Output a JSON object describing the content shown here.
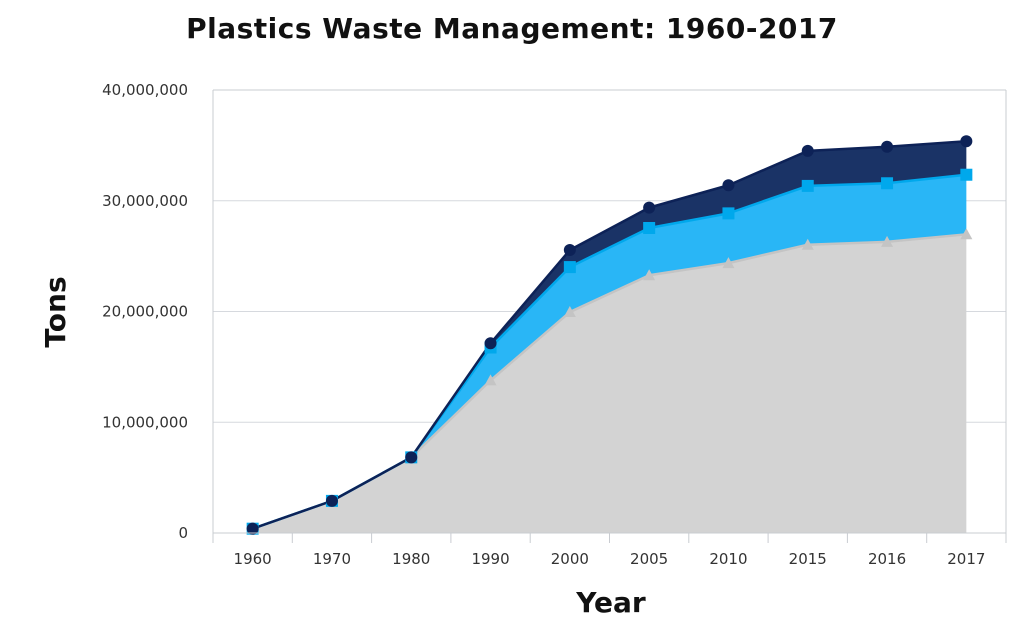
{
  "chart_data": {
    "type": "area",
    "title": "Plastics Waste Management: 1960-2017",
    "xlabel": "Year",
    "ylabel": "Tons",
    "categories": [
      "1960",
      "1970",
      "1980",
      "1990",
      "2000",
      "2005",
      "2010",
      "2015",
      "2016",
      "2017"
    ],
    "ylim": [
      0,
      40000000
    ],
    "yticks": [
      0,
      10000000,
      20000000,
      30000000,
      40000000
    ],
    "ytick_labels": [
      "0",
      "10,000,000",
      "20,000,000",
      "30,000,000",
      "40,000,000"
    ],
    "stacked": true,
    "grid": "horizontal",
    "series": [
      {
        "marker": "triangle",
        "color": "#d3d3d3",
        "line_color": "#c4c4c4",
        "values": [
          390000,
          2900000,
          6830000,
          13780000,
          19950000,
          23270000,
          24370000,
          26030000,
          26290000,
          26970000
        ]
      },
      {
        "marker": "square",
        "color": "#29b6f6",
        "line_color": "#00a8ec",
        "values": [
          390000,
          2900000,
          6830000,
          16750000,
          24010000,
          27540000,
          28860000,
          31340000,
          31580000,
          32350000
        ]
      },
      {
        "marker": "circle",
        "color": "#1a3366",
        "line_color": "#0d2257",
        "values": [
          390000,
          2900000,
          6830000,
          17130000,
          25550000,
          29380000,
          31400000,
          34500000,
          34880000,
          35370000
        ]
      }
    ]
  }
}
